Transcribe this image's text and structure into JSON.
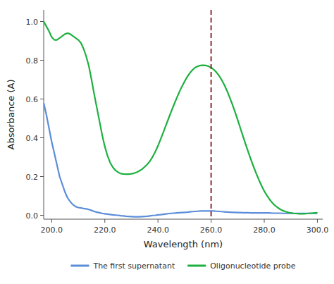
{
  "chart_data": {
    "type": "line",
    "xlabel": "Wavelength (nm)",
    "ylabel": "Absorbance (A)",
    "xlim": [
      197,
      302
    ],
    "ylim": [
      -0.02,
      1.06
    ],
    "xticks": [
      {
        "value": 200.0,
        "label": "200.0"
      },
      {
        "value": 220.0,
        "label": "220.0"
      },
      {
        "value": 240.0,
        "label": "240.0"
      },
      {
        "value": 260.0,
        "label": "260.0"
      },
      {
        "value": 280.0,
        "label": "280.0"
      },
      {
        "value": 300.0,
        "label": "300.0"
      }
    ],
    "yticks": [
      {
        "value": 0.0,
        "label": "0.0"
      },
      0.2,
      0.4,
      0.6,
      0.8,
      {
        "value": 1.0,
        "label": "1.0"
      }
    ],
    "grid": false,
    "legend": "bottom",
    "vlines": [
      {
        "x": 260.0,
        "color": "#8B3030",
        "line_style": "dashed"
      }
    ],
    "x": [
      197,
      198,
      199,
      200,
      201,
      202,
      203,
      204,
      205,
      206,
      207,
      208,
      209,
      210,
      211,
      212,
      213,
      214,
      215,
      216,
      217,
      218,
      219,
      220,
      221,
      222,
      223,
      224,
      225,
      226,
      227,
      228,
      229,
      230,
      231,
      232,
      233,
      234,
      235,
      236,
      237,
      238,
      239,
      240,
      241,
      242,
      243,
      244,
      245,
      246,
      247,
      248,
      249,
      250,
      251,
      252,
      253,
      254,
      255,
      256,
      257,
      258,
      259,
      260,
      261,
      262,
      263,
      264,
      265,
      266,
      267,
      268,
      269,
      270,
      271,
      272,
      273,
      274,
      275,
      276,
      277,
      278,
      279,
      280,
      281,
      282,
      283,
      284,
      285,
      286,
      287,
      288,
      289,
      290,
      291,
      292,
      293,
      294,
      295,
      296,
      297,
      298,
      299,
      300
    ],
    "series": [
      {
        "name": "The first supernatant",
        "color": "#5B8DD9",
        "line_style": "solid",
        "values": [
          0.58,
          0.52,
          0.45,
          0.38,
          0.32,
          0.26,
          0.2,
          0.16,
          0.12,
          0.09,
          0.07,
          0.055,
          0.045,
          0.04,
          0.038,
          0.035,
          0.033,
          0.03,
          0.025,
          0.02,
          0.016,
          0.013,
          0.01,
          0.008,
          0.006,
          0.004,
          0.002,
          0.001,
          0.0,
          -0.002,
          -0.003,
          -0.005,
          -0.006,
          -0.007,
          -0.008,
          -0.008,
          -0.008,
          -0.007,
          -0.006,
          -0.005,
          -0.003,
          -0.001,
          0.0,
          0.002,
          0.003,
          0.005,
          0.007,
          0.009,
          0.01,
          0.011,
          0.012,
          0.013,
          0.014,
          0.015,
          0.016,
          0.018,
          0.019,
          0.02,
          0.021,
          0.022,
          0.022,
          0.022,
          0.022,
          0.022,
          0.022,
          0.021,
          0.02,
          0.019,
          0.018,
          0.017,
          0.016,
          0.015,
          0.015,
          0.014,
          0.014,
          0.013,
          0.013,
          0.013,
          0.012,
          0.012,
          0.012,
          0.012,
          0.012,
          0.012,
          0.012,
          0.012,
          0.011,
          0.011,
          0.011,
          0.011,
          0.01,
          0.01,
          0.01,
          0.01,
          0.01,
          0.01,
          0.01,
          0.01,
          0.01,
          0.01,
          0.01,
          0.01,
          0.01,
          0.01
        ]
      },
      {
        "name": "Oligonucleotide probe",
        "color": "#1DB040",
        "line_style": "solid",
        "values": [
          1.0,
          0.975,
          0.95,
          0.92,
          0.905,
          0.905,
          0.915,
          0.925,
          0.935,
          0.94,
          0.935,
          0.925,
          0.915,
          0.905,
          0.89,
          0.86,
          0.82,
          0.77,
          0.7,
          0.625,
          0.555,
          0.485,
          0.415,
          0.355,
          0.308,
          0.272,
          0.248,
          0.232,
          0.222,
          0.215,
          0.213,
          0.212,
          0.212,
          0.214,
          0.217,
          0.222,
          0.229,
          0.238,
          0.25,
          0.263,
          0.28,
          0.302,
          0.328,
          0.358,
          0.392,
          0.428,
          0.464,
          0.5,
          0.536,
          0.57,
          0.603,
          0.635,
          0.664,
          0.69,
          0.714,
          0.734,
          0.75,
          0.762,
          0.769,
          0.773,
          0.774,
          0.773,
          0.769,
          0.762,
          0.752,
          0.738,
          0.72,
          0.698,
          0.672,
          0.642,
          0.608,
          0.572,
          0.533,
          0.492,
          0.45,
          0.408,
          0.366,
          0.326,
          0.287,
          0.25,
          0.215,
          0.182,
          0.152,
          0.125,
          0.102,
          0.082,
          0.065,
          0.051,
          0.04,
          0.031,
          0.024,
          0.019,
          0.015,
          0.012,
          0.01,
          0.009,
          0.008,
          0.008,
          0.008,
          0.009,
          0.01,
          0.011,
          0.012,
          0.013
        ]
      }
    ]
  }
}
